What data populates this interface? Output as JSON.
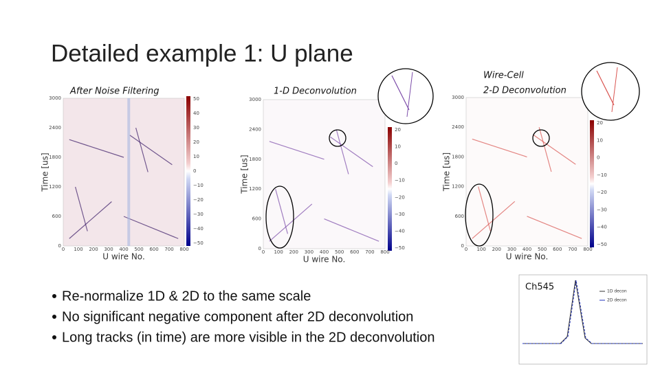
{
  "title": "Detailed example 1: U plane",
  "panels": [
    {
      "label_lines": [
        "After Noise Filtering"
      ],
      "y_axis_label": "Time [us]",
      "x_axis_label": "U wire No.",
      "yticks": [
        "0",
        "600",
        "1200",
        "1800",
        "2400",
        "3000"
      ],
      "xticks": [
        "0",
        "100",
        "200",
        "300",
        "400",
        "500",
        "600",
        "700",
        "800"
      ],
      "colorbar_ticks": [
        "50",
        "40",
        "30",
        "20",
        "10",
        "0",
        "−10",
        "−20",
        "−30",
        "−40",
        "−50"
      ]
    },
    {
      "label_lines": [
        "1-D Deconvolution"
      ],
      "y_axis_label": "Time [us]",
      "x_axis_label": "U wire No.",
      "yticks": [
        "0",
        "600",
        "1200",
        "1800",
        "2400",
        "3000"
      ],
      "xticks": [
        "0",
        "100",
        "200",
        "300",
        "400",
        "500",
        "600",
        "700",
        "800"
      ],
      "colorbar_ticks": [
        "20",
        "10",
        "0",
        "−10",
        "−20",
        "−30",
        "−40",
        "−50"
      ]
    },
    {
      "label_lines": [
        "Wire-Cell",
        "2-D Deconvolution"
      ],
      "y_axis_label": "Time [us]",
      "x_axis_label": "U wire No.",
      "yticks": [
        "0",
        "600",
        "1200",
        "1800",
        "2400",
        "3000"
      ],
      "xticks": [
        "0",
        "100",
        "200",
        "300",
        "400",
        "500",
        "600",
        "700",
        "800"
      ],
      "colorbar_ticks": [
        "20",
        "10",
        "0",
        "−10",
        "−20",
        "−30",
        "−40",
        "−50"
      ]
    }
  ],
  "bullets": [
    "Re-normalize 1D & 2D to the same scale",
    "No significant negative component after 2D deconvolution",
    "Long tracks (in time) are more visible in the 2D deconvolution"
  ],
  "inset": {
    "label": "Ch545",
    "legend": [
      "1D decon",
      "2D decon"
    ]
  }
}
